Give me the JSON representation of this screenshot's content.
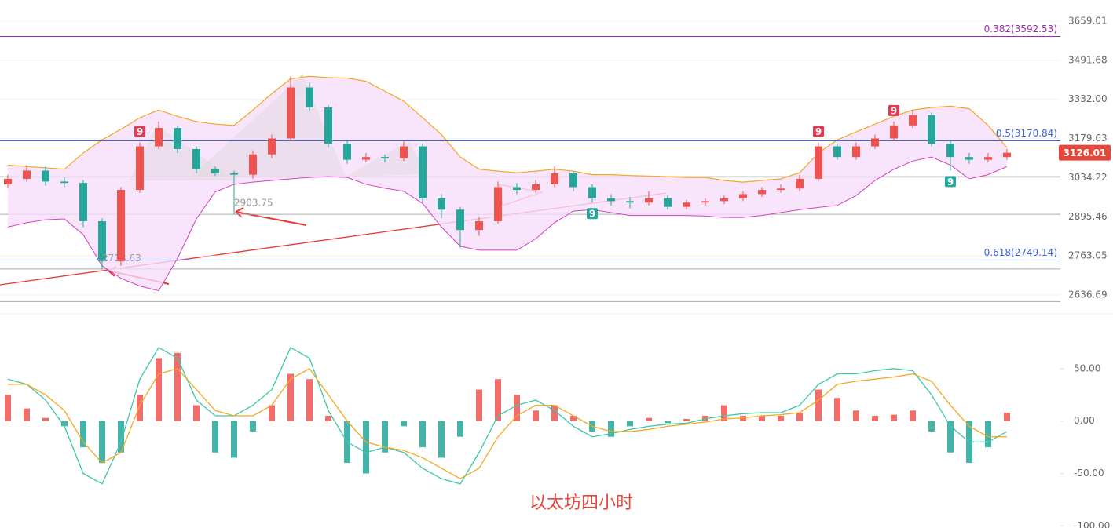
{
  "chart_data": [
    {
      "type": "candlestick",
      "log_scale": true,
      "ylim": [
        2590,
        3753
      ],
      "yticks": [
        3659.01,
        3491.68,
        {
          "value": 3332,
          "label": "3332.00"
        },
        3179.63,
        3034.22,
        2895.46,
        2763.05,
        2636.69
      ],
      "open": [
        3010,
        3030,
        3060,
        3020,
        3015,
        2880,
        2745,
        2990,
        3150,
        3220,
        3140,
        3065,
        3050,
        3045,
        3120,
        3180,
        3380,
        3300,
        3160,
        3100,
        3110,
        3105,
        3150,
        2960,
        2920,
        2850,
        2880,
        3000,
        2990,
        3010,
        3050,
        3000,
        2960,
        2950,
        2945,
        2960,
        2930,
        2945,
        2950,
        2960,
        2975,
        2990,
        2995,
        3030,
        3150,
        3110,
        3150,
        3180,
        3230,
        3270,
        3160,
        3110,
        3100,
        3110
      ],
      "high": [
        3045,
        3080,
        3075,
        3035,
        3025,
        2890,
        3000,
        3165,
        3245,
        3230,
        3150,
        3075,
        3060,
        3135,
        3195,
        3425,
        3400,
        3310,
        3170,
        3125,
        3120,
        3170,
        3160,
        2975,
        2930,
        2895,
        3020,
        3015,
        3025,
        3075,
        3060,
        3010,
        2975,
        2965,
        2985,
        2970,
        2955,
        2960,
        2970,
        2985,
        3000,
        3010,
        3045,
        3165,
        3160,
        3165,
        3195,
        3245,
        3290,
        3280,
        3170,
        3125,
        3125,
        3140
      ],
      "low": [
        2995,
        3020,
        3005,
        3000,
        2860,
        2718.63,
        2730,
        2980,
        3140,
        3125,
        3050,
        3040,
        2903.75,
        3030,
        3105,
        3170,
        3285,
        3145,
        3085,
        3090,
        3090,
        3095,
        2945,
        2890,
        2790,
        2830,
        2870,
        2975,
        2980,
        3000,
        2985,
        2945,
        2935,
        2925,
        2935,
        2920,
        2920,
        2935,
        2940,
        2950,
        2965,
        2980,
        2985,
        3020,
        3100,
        3100,
        3140,
        3170,
        3220,
        3150,
        3060,
        3085,
        3090,
        3100
      ],
      "close": [
        3030,
        3060,
        3020,
        3015,
        2880,
        2745,
        2990,
        3150,
        3220,
        3140,
        3065,
        3050,
        3045,
        3120,
        3180,
        3380,
        3300,
        3160,
        3100,
        3110,
        3105,
        3150,
        2960,
        2920,
        2850,
        2880,
        3000,
        2990,
        3010,
        3050,
        3000,
        2960,
        2950,
        2945,
        2960,
        2930,
        2945,
        2950,
        2960,
        2975,
        2990,
        2995,
        3030,
        3150,
        3110,
        3150,
        3180,
        3230,
        3270,
        3160,
        3110,
        3100,
        3110,
        3126.01
      ],
      "low_value_labels": [
        null,
        null,
        null,
        null,
        null,
        "2718.63",
        null,
        null,
        null,
        null,
        null,
        null,
        "2903.75",
        null,
        null,
        null,
        null,
        null,
        null,
        null,
        null,
        null,
        null,
        null,
        null,
        null,
        null,
        null,
        null,
        null,
        null,
        null,
        null,
        null,
        null,
        null,
        null,
        null,
        null,
        null,
        null,
        null,
        null,
        null,
        null,
        null,
        null,
        null,
        null,
        null,
        null,
        null,
        null,
        null
      ],
      "td_sell": [
        null,
        null,
        null,
        null,
        null,
        null,
        null,
        "9",
        null,
        null,
        null,
        null,
        null,
        null,
        null,
        null,
        null,
        null,
        null,
        null,
        null,
        null,
        null,
        null,
        null,
        null,
        null,
        null,
        null,
        null,
        null,
        null,
        null,
        null,
        null,
        null,
        null,
        null,
        null,
        null,
        null,
        null,
        null,
        "9",
        null,
        null,
        null,
        "9",
        null,
        null,
        null,
        null,
        null,
        null
      ],
      "td_buy": [
        null,
        null,
        null,
        null,
        null,
        null,
        null,
        null,
        null,
        null,
        null,
        null,
        null,
        null,
        null,
        null,
        null,
        null,
        null,
        null,
        null,
        null,
        null,
        null,
        null,
        null,
        null,
        null,
        null,
        null,
        null,
        "9",
        null,
        null,
        null,
        null,
        null,
        null,
        null,
        null,
        null,
        null,
        null,
        null,
        null,
        null,
        null,
        null,
        null,
        null,
        "9",
        null,
        null,
        null
      ],
      "up_color": "#ef5350",
      "down_color": "#26a69a",
      "bands": {
        "color": "#f5a623",
        "fill": "#f6defa",
        "upper": [
          3080,
          3075,
          3070,
          3065,
          3125,
          3175,
          3215,
          3260,
          3290,
          3265,
          3245,
          3235,
          3230,
          3290,
          3355,
          3415,
          3425,
          3420,
          3418,
          3405,
          3365,
          3325,
          3260,
          3195,
          3110,
          3065,
          3058,
          3052,
          3058,
          3065,
          3058,
          3045,
          3045,
          3042,
          3040,
          3038,
          3035,
          3035,
          3024,
          3018,
          3024,
          3030,
          3052,
          3125,
          3175,
          3205,
          3235,
          3265,
          3290,
          3300,
          3305,
          3295,
          3230,
          3145
        ],
        "lower": [
          2860,
          2875,
          2885,
          2888,
          2834,
          2730,
          2690,
          2665,
          2650,
          2755,
          2888,
          2983,
          3010,
          3018,
          3024,
          3030,
          3035,
          3038,
          3035,
          3010,
          2996,
          2985,
          2942,
          2860,
          2795,
          2782,
          2782,
          2782,
          2820,
          2875,
          2915,
          2920,
          2910,
          2900,
          2900,
          2900,
          2900,
          2898,
          2893,
          2893,
          2900,
          2910,
          2920,
          2928,
          2935,
          2970,
          3024,
          3065,
          3095,
          3110,
          3080,
          3030,
          3045,
          3075
        ]
      },
      "levels": [
        {
          "value": 3592.53,
          "label": "0.382(3592.53)",
          "color": "#9c27b0"
        },
        {
          "value": 3170.84,
          "label": "0.5(3170.84)",
          "color": "#3f63d8"
        },
        {
          "value": 2749.14,
          "label": "0.618(2749.14)",
          "color": "#3f63d8"
        }
      ],
      "support_lines": [
        3038,
        2904,
        2720,
        2616
      ]
    },
    {
      "type": "macd",
      "ylim": [
        -102,
        100
      ],
      "yticks": [
        {
          "value": 50,
          "label": "50.00"
        },
        {
          "value": 0,
          "label": "0.00"
        },
        {
          "value": -50,
          "label": "-50.00"
        },
        {
          "value": -100,
          "label": "-100.00"
        }
      ],
      "histogram": [
        25,
        12,
        3,
        -5,
        -25,
        -40,
        -30,
        25,
        60,
        65,
        15,
        -30,
        -35,
        -10,
        15,
        45,
        40,
        5,
        -40,
        -50,
        -30,
        -5,
        -25,
        -35,
        -15,
        30,
        40,
        25,
        10,
        15,
        5,
        -10,
        -15,
        -5,
        3,
        -2,
        2,
        5,
        15,
        5,
        5,
        5,
        8,
        30,
        22,
        10,
        5,
        6,
        10,
        -10,
        -30,
        -40,
        -25,
        8
      ],
      "dif": [
        40,
        35,
        20,
        -5,
        -50,
        -60,
        -20,
        40,
        70,
        60,
        20,
        5,
        5,
        15,
        30,
        70,
        60,
        10,
        -20,
        -30,
        -25,
        -30,
        -45,
        -55,
        -60,
        -30,
        5,
        15,
        20,
        10,
        -5,
        -15,
        -12,
        -8,
        -5,
        -3,
        -2,
        2,
        5,
        7,
        8,
        8,
        15,
        35,
        45,
        45,
        48,
        50,
        48,
        25,
        -5,
        -20,
        -20,
        -10
      ],
      "dea": [
        35,
        35,
        25,
        10,
        -20,
        -40,
        -30,
        15,
        45,
        50,
        30,
        10,
        5,
        5,
        15,
        40,
        50,
        25,
        0,
        -20,
        -25,
        -28,
        -35,
        -45,
        -55,
        -45,
        -15,
        5,
        15,
        15,
        5,
        -5,
        -10,
        -10,
        -8,
        -5,
        -3,
        -1,
        2,
        3,
        5,
        6,
        8,
        20,
        35,
        38,
        40,
        42,
        45,
        38,
        15,
        -5,
        -15,
        -15
      ],
      "dif_color": "#3cc8a8",
      "dea_color": "#f5a623",
      "up_color": "#ef5350",
      "down_color": "#26a69a",
      "annotation": "以太坊四小时"
    }
  ]
}
